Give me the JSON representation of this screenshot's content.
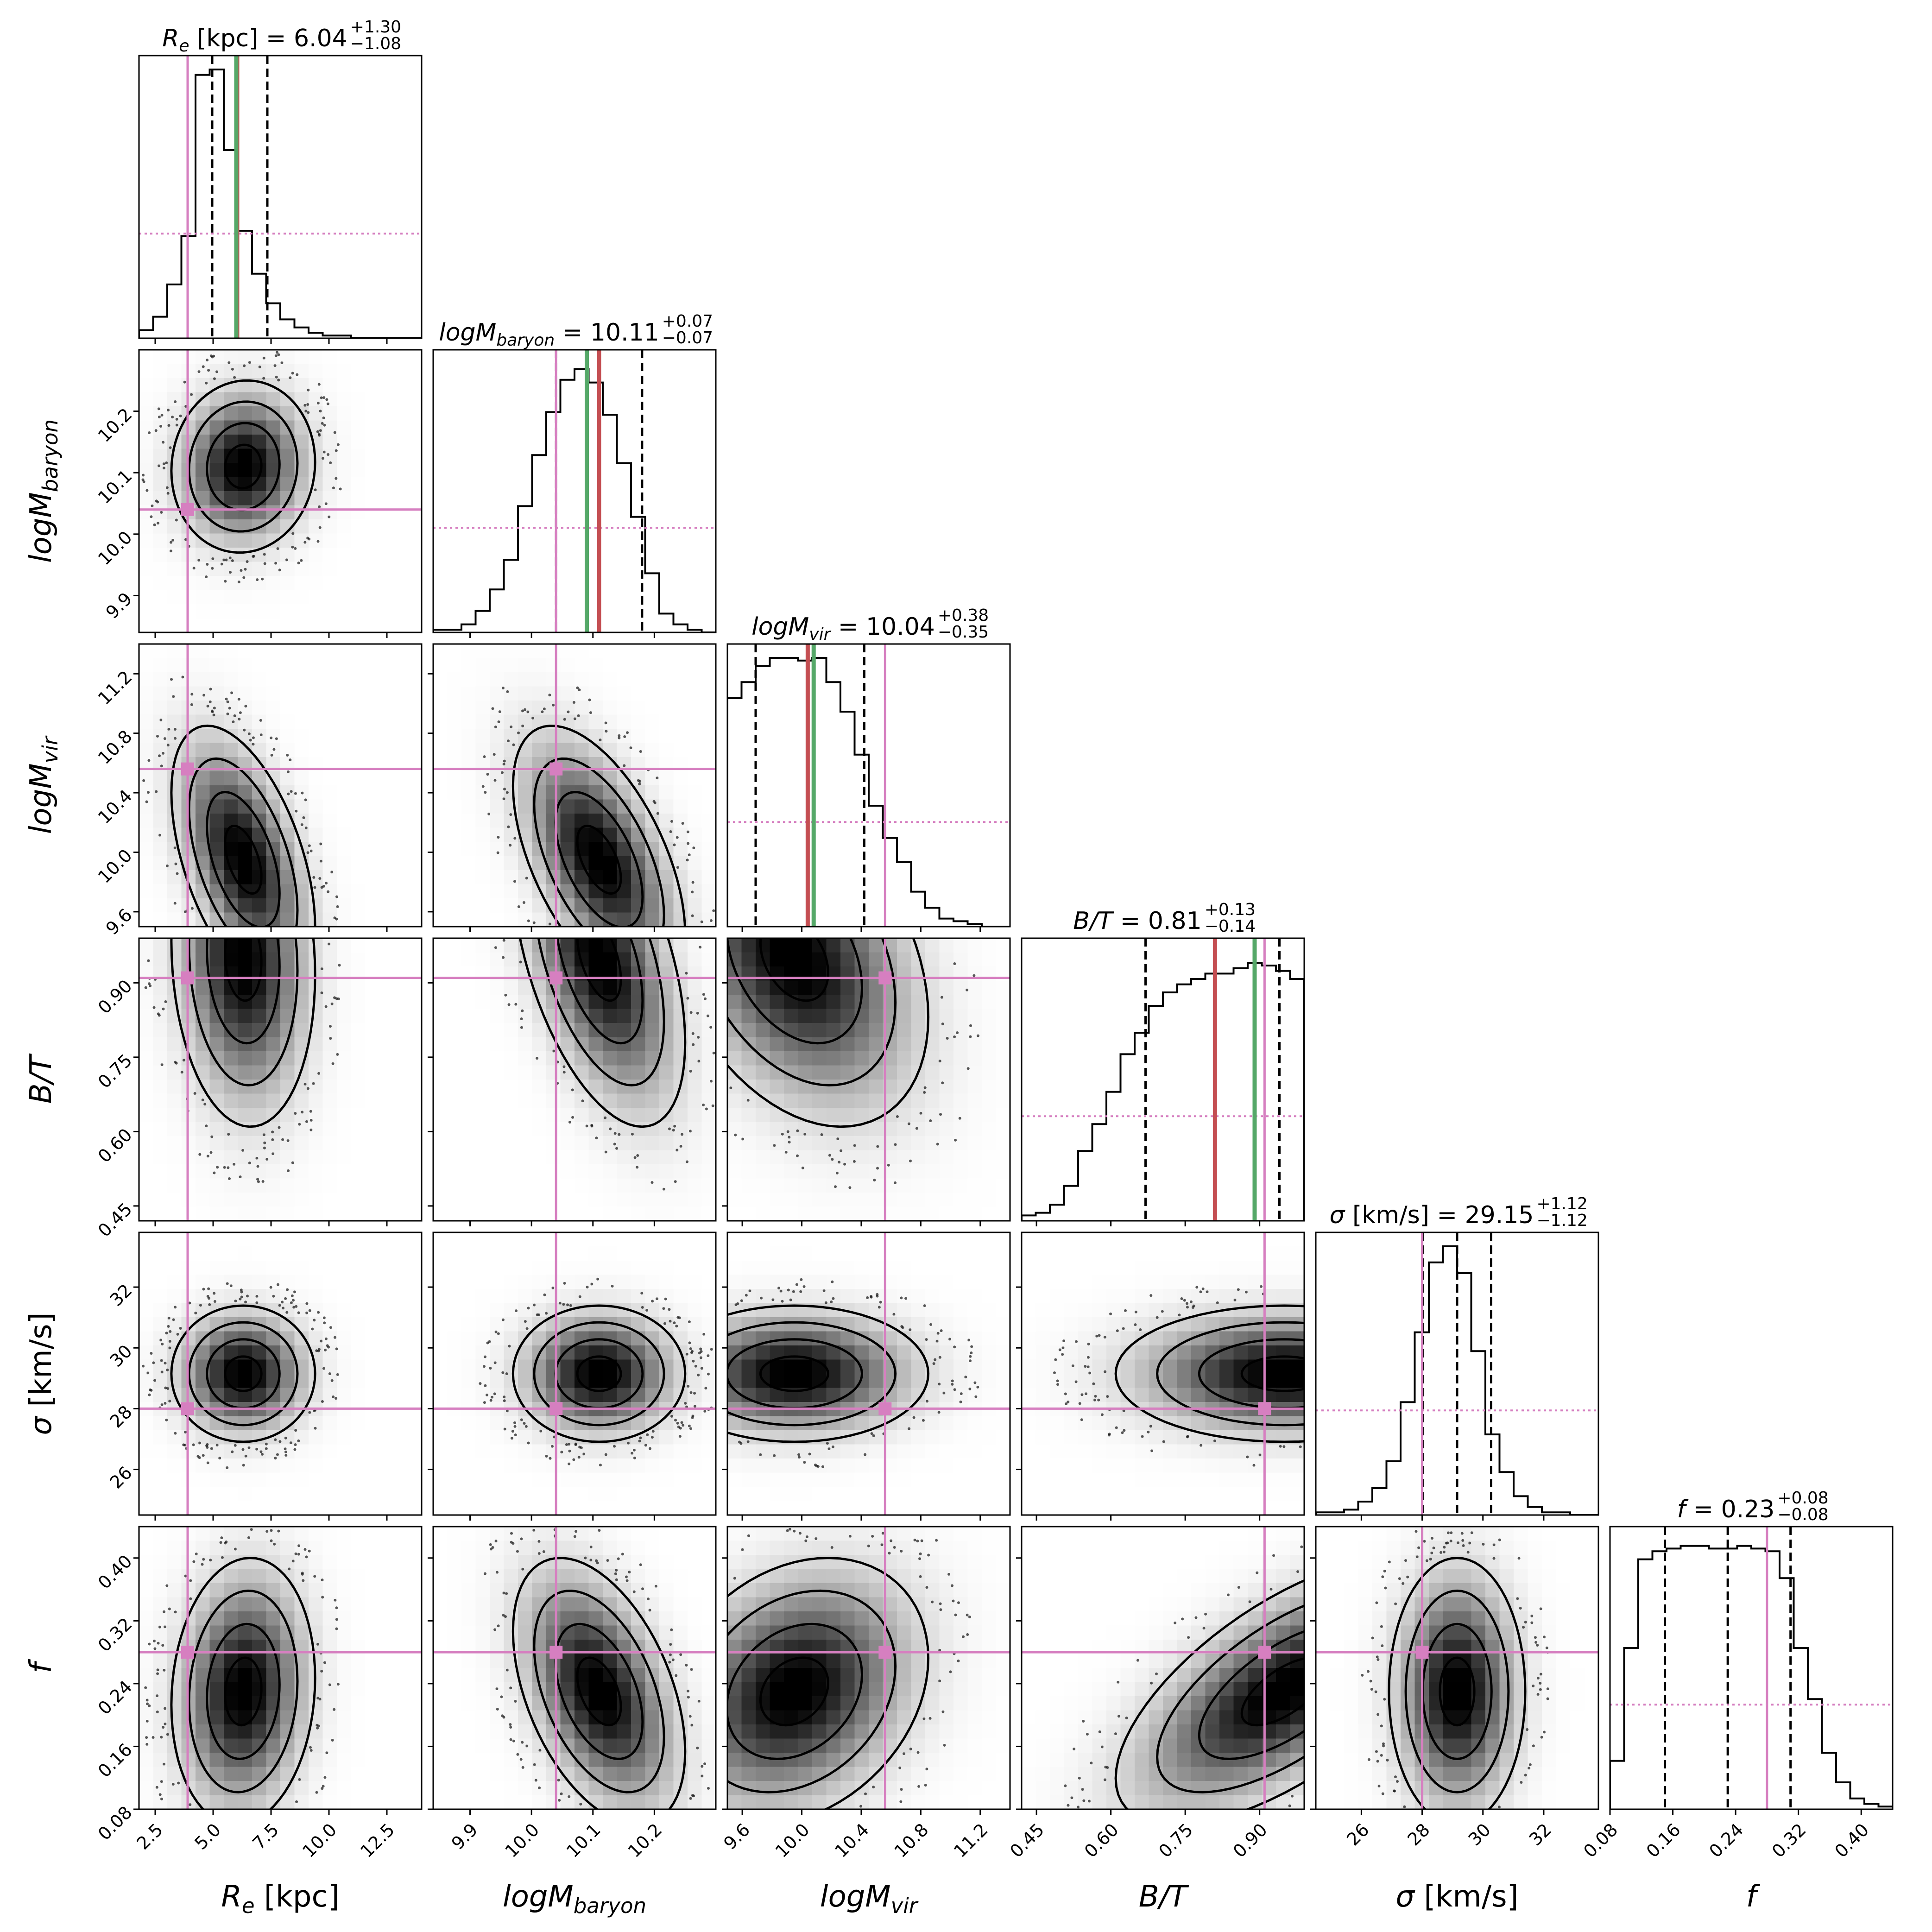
{
  "chart_data": {
    "type": "corner",
    "grid": false,
    "colors": {
      "truth": "#d67fc0",
      "median_marker": "#c44e52",
      "mode_marker": "#55a868",
      "quantile": "#000000",
      "density": "#000000"
    },
    "parameters": [
      {
        "key": "Re",
        "label_main": "R",
        "label_sub": "e",
        "label_rest": " [kpc]",
        "title_main": "R",
        "title_sub": "e",
        "title_rest": " [kpc] = 6.04",
        "title_plus": "+1.30",
        "title_minus": "−1.08",
        "range": [
          1.8,
          14.0
        ],
        "ticks": [
          "2.5",
          "5.0",
          "7.5",
          "10.0",
          "12.5"
        ],
        "tick_values": [
          2.5,
          5.0,
          7.5,
          10.0,
          12.5
        ],
        "median": 6.04,
        "q16": 4.96,
        "q84": 7.34,
        "truth": 3.9,
        "red": 6.04,
        "green": 6.0,
        "mean": 6.3,
        "sd": 1.55,
        "hist": [
          0.03,
          0.08,
          0.2,
          0.38,
          0.98,
          1.0,
          0.7,
          0.4,
          0.24,
          0.13,
          0.07,
          0.04,
          0.02,
          0.01,
          0.01,
          0.0,
          0.0,
          0.0,
          0.0,
          0.0
        ]
      },
      {
        "key": "Mbar",
        "label_main": "logM",
        "label_sub": "baryon",
        "label_rest": "",
        "title_main": "logM",
        "title_sub": "baryon",
        "title_rest": " = 10.11",
        "title_plus": "+0.07",
        "title_minus": "−0.07",
        "range": [
          9.84,
          10.3
        ],
        "ticks": [
          "9.9",
          "10.0",
          "10.1",
          "10.2"
        ],
        "tick_values": [
          9.9,
          10.0,
          10.1,
          10.2
        ],
        "median": 10.11,
        "q16": 10.04,
        "q84": 10.18,
        "truth": 10.04,
        "red": 10.11,
        "green": 10.09,
        "mean": 10.11,
        "sd": 0.07,
        "hist": [
          0.01,
          0.01,
          0.03,
          0.08,
          0.16,
          0.27,
          0.47,
          0.66,
          0.82,
          0.94,
          0.98,
          0.93,
          0.81,
          0.63,
          0.43,
          0.22,
          0.07,
          0.03,
          0.01,
          0.0
        ]
      },
      {
        "key": "Mvir",
        "label_main": "logM",
        "label_sub": "vir",
        "label_rest": "",
        "title_main": "logM",
        "title_sub": "vir",
        "title_rest": " = 10.04",
        "title_plus": "+0.38",
        "title_minus": "−0.35",
        "range": [
          9.5,
          11.4
        ],
        "ticks": [
          "9.6",
          "10.0",
          "10.4",
          "10.8",
          "11.2"
        ],
        "tick_values": [
          9.6,
          10.0,
          10.4,
          10.8,
          11.2
        ],
        "median": 10.04,
        "q16": 9.69,
        "q84": 10.42,
        "truth": 10.56,
        "red": 10.04,
        "green": 10.08,
        "mean": 9.95,
        "sd": 0.45,
        "hist": [
          0.85,
          0.91,
          0.97,
          1.0,
          1.0,
          0.99,
          1.0,
          0.91,
          0.8,
          0.64,
          0.45,
          0.33,
          0.24,
          0.13,
          0.07,
          0.03,
          0.02,
          0.01,
          0.0,
          0.0
        ]
      },
      {
        "key": "BT",
        "label_main": "B/T",
        "label_sub": "",
        "label_rest": "",
        "title_main": "B/T",
        "title_sub": "",
        "title_rest": " = 0.81",
        "title_plus": "+0.13",
        "title_minus": "−0.14",
        "range": [
          0.42,
          0.99
        ],
        "ticks": [
          "0.45",
          "0.60",
          "0.75",
          "0.90"
        ],
        "tick_values": [
          0.45,
          0.6,
          0.75,
          0.9
        ],
        "median": 0.81,
        "q16": 0.67,
        "q84": 0.94,
        "truth": 0.91,
        "red": 0.81,
        "green": 0.89,
        "mean": 0.95,
        "sd": 0.17,
        "hist": [
          0.02,
          0.03,
          0.06,
          0.13,
          0.26,
          0.36,
          0.48,
          0.62,
          0.7,
          0.8,
          0.85,
          0.88,
          0.9,
          0.92,
          0.92,
          0.94,
          0.96,
          0.95,
          0.93,
          0.9
        ]
      },
      {
        "key": "sigma",
        "label_main": "σ",
        "label_sub": "",
        "label_rest": " [km/s]",
        "title_main": "σ",
        "title_sub": "",
        "title_rest": " [km/s] = 29.15",
        "title_plus": "+1.12",
        "title_minus": "−1.12",
        "range": [
          24.5,
          33.8
        ],
        "ticks": [
          "26",
          "28",
          "30",
          "32"
        ],
        "tick_values": [
          26,
          28,
          30,
          32
        ],
        "median": 29.15,
        "q16": 28.03,
        "q84": 30.27,
        "truth": 28.0,
        "red": null,
        "green": null,
        "mean": 29.15,
        "sd": 1.12,
        "hist": [
          0.01,
          0.01,
          0.02,
          0.05,
          0.1,
          0.2,
          0.42,
          0.68,
          0.94,
          1.0,
          0.9,
          0.61,
          0.3,
          0.16,
          0.07,
          0.03,
          0.01,
          0.01,
          0.0,
          0.0
        ]
      },
      {
        "key": "f",
        "label_main": "f",
        "label_sub": "",
        "label_rest": "",
        "title_main": "f",
        "title_sub": "",
        "title_rest": " = 0.23",
        "title_plus": "+0.08",
        "title_minus": "−0.08",
        "range": [
          0.08,
          0.44
        ],
        "ticks": [
          "0.08",
          "0.16",
          "0.24",
          "0.32",
          "0.40"
        ],
        "tick_values": [
          0.08,
          0.16,
          0.24,
          0.32,
          0.4
        ],
        "median": 0.23,
        "q16": 0.15,
        "q84": 0.31,
        "truth": 0.28,
        "red": null,
        "green": null,
        "mean": 0.23,
        "sd": 0.085,
        "hist": [
          0.18,
          0.6,
          0.93,
          0.96,
          0.97,
          0.98,
          0.98,
          0.97,
          0.97,
          0.98,
          0.97,
          0.96,
          0.86,
          0.6,
          0.41,
          0.21,
          0.1,
          0.04,
          0.02,
          0.01
        ]
      }
    ]
  }
}
